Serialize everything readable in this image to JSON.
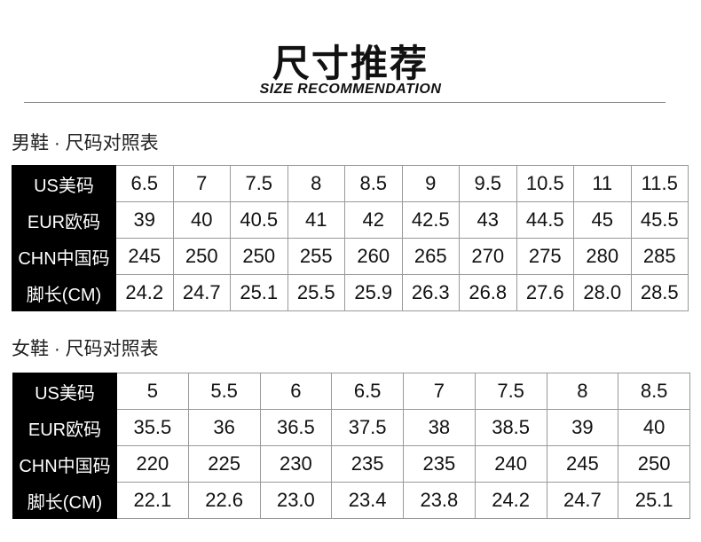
{
  "header": {
    "title": "尺寸推荐",
    "subtitle": "SIZE RECOMMENDATION"
  },
  "men": {
    "label": "男鞋 · 尺码对照表",
    "rows": [
      {
        "header": "US美码",
        "values": [
          "6.5",
          "7",
          "7.5",
          "8",
          "8.5",
          "9",
          "9.5",
          "10.5",
          "11",
          "11.5"
        ]
      },
      {
        "header": "EUR欧码",
        "values": [
          "39",
          "40",
          "40.5",
          "41",
          "42",
          "42.5",
          "43",
          "44.5",
          "45",
          "45.5"
        ]
      },
      {
        "header": "CHN中国码",
        "values": [
          "245",
          "250",
          "250",
          "255",
          "260",
          "265",
          "270",
          "275",
          "280",
          "285"
        ]
      },
      {
        "header": "脚长(CM)",
        "values": [
          "24.2",
          "24.7",
          "25.1",
          "25.5",
          "25.9",
          "26.3",
          "26.8",
          "27.6",
          "28.0",
          "28.5"
        ]
      }
    ]
  },
  "women": {
    "label": "女鞋 · 尺码对照表",
    "rows": [
      {
        "header": "US美码",
        "values": [
          "5",
          "5.5",
          "6",
          "6.5",
          "7",
          "7.5",
          "8",
          "8.5"
        ]
      },
      {
        "header": "EUR欧码",
        "values": [
          "35.5",
          "36",
          "36.5",
          "37.5",
          "38",
          "38.5",
          "39",
          "40"
        ]
      },
      {
        "header": "CHN中国码",
        "values": [
          "220",
          "225",
          "230",
          "235",
          "235",
          "240",
          "245",
          "250"
        ]
      },
      {
        "header": "脚长(CM)",
        "values": [
          "22.1",
          "22.6",
          "23.0",
          "23.4",
          "23.8",
          "24.2",
          "24.7",
          "25.1"
        ]
      }
    ]
  }
}
